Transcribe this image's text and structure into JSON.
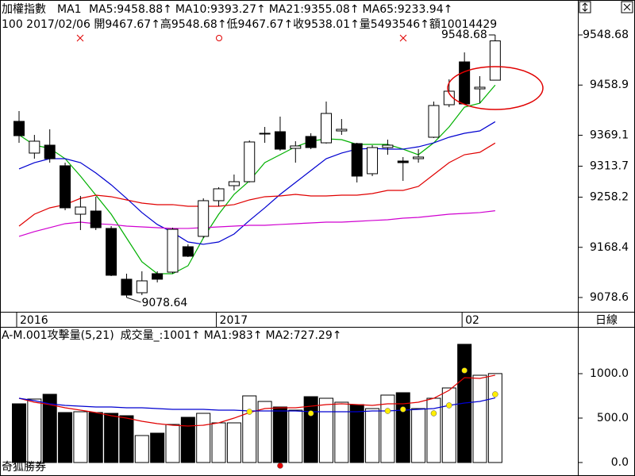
{
  "chart_data": [
    {
      "type": "candlestick",
      "title": "加權指數",
      "period_label": "MA1",
      "info": "100 2017/02/06 開9467.67↑高9548.68↑低9467.67↑收9538.01↑量5493546↑額10014429",
      "x_axis_label": "日線",
      "categories": [
        "2016",
        null,
        null,
        null,
        null,
        null,
        null,
        null,
        null,
        null,
        null,
        null,
        null,
        "2017",
        null,
        null,
        null,
        null,
        null,
        null,
        null,
        null,
        null,
        null,
        null,
        null,
        null,
        null,
        null,
        "02",
        null,
        null
      ],
      "open": [
        9393.9,
        9337.1,
        9351.3,
        9314.4,
        9227.7,
        9233.4,
        9202.2,
        9111.3,
        9087.1,
        9121.2,
        9124.0,
        9169.5,
        9188.0,
        9251.9,
        9278.8,
        9285.9,
        9371.2,
        9375.4,
        9345.6,
        9366.9,
        9355.5,
        9376.8,
        9354.1,
        9300.2,
        9347.0,
        9322.9,
        9327.1,
        9365.5,
        9423.7,
        9500.4,
        9452.1,
        9467.67
      ],
      "high": [
        9412.3,
        9369.7,
        9379.7,
        9320.0,
        9260.4,
        9259.0,
        9206.4,
        9121.2,
        9125.5,
        9125.5,
        9203.6,
        9173.8,
        9256.1,
        9276.0,
        9298.7,
        9359.8,
        9383.9,
        9402.4,
        9358.4,
        9372.6,
        9429.4,
        9398.1,
        9355.5,
        9351.3,
        9361.2,
        9330.0,
        9344.2,
        9429.4,
        9469.2,
        9517.4,
        9474.8,
        9548.68
      ],
      "low": [
        9355.5,
        9327.1,
        9320.0,
        9234.8,
        9199.3,
        9199.3,
        9116.9,
        9078.64,
        9082.9,
        9105.6,
        9121.2,
        9151.0,
        9185.1,
        9241.9,
        9270.3,
        9284.5,
        9355.5,
        9341.3,
        9320.0,
        9344.2,
        9354.1,
        9369.7,
        9284.5,
        9295.9,
        9334.2,
        9287.4,
        9320.0,
        9364.1,
        9419.4,
        9423.7,
        9426.5,
        9467.67
      ],
      "close": [
        9368.3,
        9358.4,
        9327.1,
        9239.1,
        9240.5,
        9203.6,
        9118.4,
        9082.9,
        9108.4,
        9111.3,
        9200.7,
        9152.5,
        9251.9,
        9273.2,
        9285.9,
        9357.0,
        9372.6,
        9344.2,
        9349.9,
        9347.0,
        9408.1,
        9379.7,
        9295.9,
        9347.0,
        9351.3,
        9320.0,
        9330.0,
        9422.3,
        9447.9,
        9425.1,
        9455.0,
        9538.01
      ],
      "series": [
        {
          "name": "MA5:9458.88↑",
          "color": "#00b000",
          "values": [
            9369.7,
            9351.3,
            9345.6,
            9327.1,
            9295.9,
            9261.8,
            9227.7,
            9185.1,
            9142.5,
            9121.2,
            9121.2,
            9135.4,
            9185.1,
            9227.7,
            9263.2,
            9287.4,
            9320.0,
            9334.2,
            9348.4,
            9358.4,
            9362.6,
            9361.2,
            9352.7,
            9352.7,
            9352.7,
            9344.2,
            9334.2,
            9355.5,
            9383.9,
            9419.4,
            9426.5,
            9458.88
          ]
        },
        {
          "name": "MA10:9393.27↑",
          "color": "#0000d0",
          "values": [
            9308.7,
            9320.0,
            9327.1,
            9327.1,
            9320.0,
            9301.6,
            9280.3,
            9256.1,
            9230.6,
            9209.3,
            9195.1,
            9178.0,
            9173.8,
            9178.0,
            9192.2,
            9216.4,
            9239.1,
            9263.2,
            9284.5,
            9305.8,
            9327.1,
            9337.1,
            9344.2,
            9345.6,
            9344.2,
            9344.2,
            9348.4,
            9355.5,
            9365.5,
            9372.6,
            9376.8,
            9393.27
          ]
        },
        {
          "name": "MA21:9355.08↑",
          "color": "#e00000",
          "values": [
            9206.4,
            9227.7,
            9239.1,
            9244.8,
            9256.1,
            9261.8,
            9259.0,
            9253.3,
            9247.6,
            9244.8,
            9244.8,
            9241.9,
            9241.9,
            9241.9,
            9244.8,
            9253.3,
            9259.0,
            9260.4,
            9263.2,
            9260.4,
            9260.4,
            9261.8,
            9261.8,
            9264.6,
            9270.3,
            9270.3,
            9277.4,
            9298.7,
            9320.0,
            9334.2,
            9338.5,
            9355.08
          ]
        },
        {
          "name": "MA65:9233.94↑",
          "color": "#d000d0",
          "values": [
            9188.0,
            9196.5,
            9203.6,
            9210.7,
            9213.5,
            9210.7,
            9209.3,
            9206.4,
            9205.0,
            9203.6,
            9202.2,
            9202.2,
            9203.6,
            9205.0,
            9206.4,
            9207.8,
            9207.8,
            9209.3,
            9210.7,
            9212.1,
            9213.5,
            9213.5,
            9214.9,
            9216.4,
            9217.8,
            9220.6,
            9222.0,
            9224.9,
            9227.7,
            9229.1,
            9230.6,
            9233.94
          ]
        }
      ],
      "annotations": [
        "9548.68",
        "9078.64"
      ],
      "ylim": [
        9053.0,
        9611.2
      ],
      "yticks": [
        9548.68,
        9458.9,
        9369.1,
        9313.7,
        9258.2,
        9168.4,
        9078.6
      ]
    },
    {
      "type": "volume",
      "title": "A-M.001攻擊量(5,21)",
      "footer": "奇狐勝券",
      "series": [
        {
          "name": "成交量_:1001↑",
          "color": "#008000",
          "values": [
            660.7,
            714.3,
            767.9,
            562.5,
            571.4,
            562.5,
            553.6,
            526.8,
            303.6,
            330.4,
            428.6,
            508.9,
            553.6,
            446.4,
            446.4,
            750.0,
            687.5,
            625.0,
            589.3,
            741.1,
            723.2,
            678.6,
            651.8,
            607.1,
            758.9,
            785.7,
            607.1,
            723.2,
            839.3,
            1330.4,
            982.1,
            1001
          ]
        },
        {
          "name": "MA1:983↑",
          "color": "#e00000",
          "values": [
            723.2,
            678.6,
            651.8,
            616.1,
            589.3,
            562.5,
            526.8,
            500.0,
            464.3,
            437.5,
            419.6,
            410.7,
            419.6,
            446.4,
            500.0,
            562.5,
            607.1,
            616.1,
            616.1,
            633.9,
            651.8,
            660.7,
            651.8,
            642.9,
            660.7,
            660.7,
            678.6,
            723.2,
            812.5,
            955.4,
            946.4,
            983
          ]
        },
        {
          "name": "MA2:727.29↑",
          "color": "#0000d0",
          "values": [
            723.2,
            696.4,
            660.7,
            642.9,
            633.9,
            625.0,
            625.0,
            616.1,
            616.1,
            607.1,
            598.2,
            598.2,
            598.2,
            589.3,
            589.3,
            580.4,
            580.4,
            580.4,
            580.4,
            571.4,
            571.4,
            571.4,
            571.4,
            580.4,
            580.4,
            589.3,
            598.2,
            607.1,
            642.9,
            669.6,
            687.5,
            727.29
          ]
        }
      ],
      "markers": [
        {
          "color": "#ffee00",
          "values": [
            null,
            null,
            null,
            null,
            null,
            null,
            null,
            null,
            null,
            null,
            null,
            null,
            null,
            null,
            null,
            571.4,
            null,
            null,
            null,
            553.6,
            null,
            null,
            null,
            null,
            580.4,
            598.2,
            null,
            553.6,
            642.9,
            1035.7,
            null,
            767.9
          ]
        },
        {
          "color": "#e00000",
          "values": [
            null,
            null,
            null,
            null,
            null,
            null,
            null,
            null,
            null,
            null,
            null,
            null,
            null,
            null,
            null,
            null,
            null,
            -35.7,
            null,
            null,
            null,
            null,
            null,
            null,
            null,
            null,
            null,
            null,
            null,
            null,
            null,
            null
          ]
        }
      ],
      "ylim": [
        -133.9,
        1517.9
      ],
      "yticks": [
        {
          "value": 1000,
          "label": "1000.0"
        },
        {
          "value": 500,
          "label": "500.0"
        },
        {
          "value": 0,
          "label": "0.0"
        }
      ]
    }
  ]
}
